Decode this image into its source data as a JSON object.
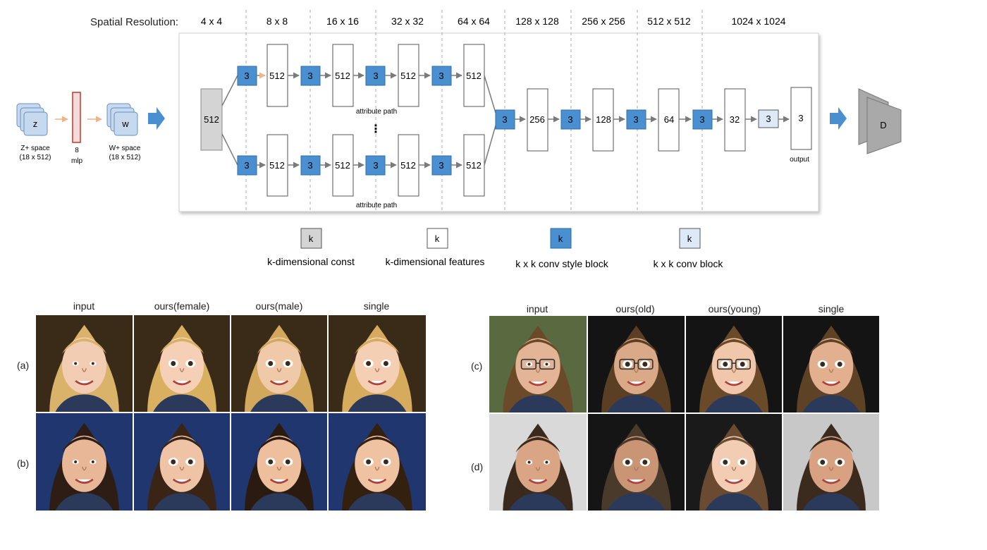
{
  "diagram": {
    "spatial_label": "Spatial  Resolution:",
    "resolutions": [
      "4 x 4",
      "8 x 8",
      "16 x 16",
      "32 x 32",
      "64 x 64",
      "128 x 128",
      "256 x 256",
      "512 x 512",
      "1024 x 1024"
    ],
    "z_label": "z",
    "z_space": "Z+ space",
    "z_dims": "(18 x 512)",
    "mlp_count": "8",
    "mlp_label": "mlp",
    "w_label": "w",
    "w_space": "W+ space",
    "w_dims": "(18 x 512)",
    "const_value": "512",
    "style_kernel": "3",
    "top_features": [
      "512",
      "512",
      "512",
      "512"
    ],
    "bottom_features": [
      "512",
      "512",
      "512",
      "512"
    ],
    "attribute_path": "attribute path",
    "ellipsis": "⋮",
    "merged_features": [
      "256",
      "128",
      "64",
      "32"
    ],
    "conv_kernel": "3",
    "output_value": "3",
    "output_label": "output",
    "discriminator": "D",
    "legend": [
      {
        "symbol": "k",
        "label": "k-dimensional const",
        "style": "const"
      },
      {
        "symbol": "k",
        "label": "k-dimensional features",
        "style": "feature"
      },
      {
        "symbol": "k",
        "label": "k x k  conv style block",
        "style": "style"
      },
      {
        "symbol": "k",
        "label": "k x k  conv block",
        "style": "conv"
      }
    ]
  },
  "results": {
    "left": {
      "columns": [
        "input",
        "ours(female)",
        "ours(male)",
        "single"
      ],
      "rows": [
        "(a)",
        "(b)"
      ]
    },
    "right": {
      "columns": [
        "input",
        "ours(old)",
        "ours(young)",
        "single"
      ],
      "rows": [
        "(c)",
        "(d)"
      ]
    }
  },
  "colors": {
    "style_block": "#4a8fd0",
    "conv_block": "#dde9f7",
    "const_block": "#d4d4d4",
    "arrow_blue": "#4a8fd0",
    "mlp_red": "#c0392b",
    "discriminator": "#a9a9a9"
  }
}
